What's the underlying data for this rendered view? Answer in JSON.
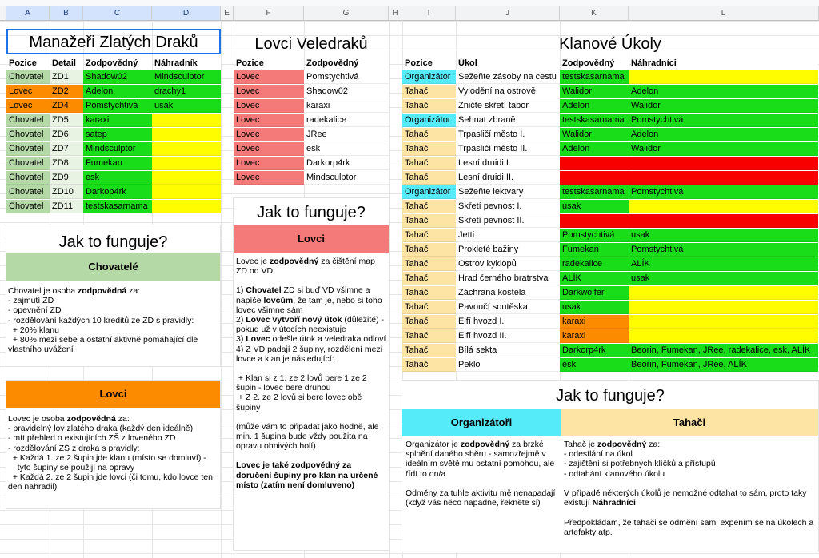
{
  "columns": [
    "A",
    "B",
    "C",
    "D",
    "E",
    "F",
    "G",
    "H",
    "I",
    "J",
    "K",
    "L"
  ],
  "colors": {
    "green": "#19dd19",
    "yellow": "#fffd00",
    "red": "#f80000",
    "orange": "#fd8b00",
    "sage": "#b5d8a7",
    "salmon": "#f47a7a",
    "cyan": "#56ebf9",
    "peach": "#fde4a5"
  },
  "dragons": {
    "title": "Manažeři Zlatých Draků",
    "headers": [
      "Pozice",
      "Detail",
      "Zodpovědný",
      "Náhradník"
    ],
    "rows": [
      [
        "Chovatel",
        "ZD1",
        "Shadow02",
        "Mindsculptor"
      ],
      [
        "Lovec",
        "ZD2",
        "Adelon",
        "drachy1"
      ],
      [
        "Lovec",
        "ZD4",
        "Pomstychtivá",
        "usak"
      ],
      [
        "Chovatel",
        "ZD5",
        "karaxi",
        ""
      ],
      [
        "Chovatel",
        "ZD6",
        "satep",
        ""
      ],
      [
        "Chovatel",
        "ZD7",
        "Mindsculptor",
        ""
      ],
      [
        "Chovatel",
        "ZD8",
        "Fumekan",
        ""
      ],
      [
        "Chovatel",
        "ZD9",
        "esk",
        ""
      ],
      [
        "Chovatel",
        "ZD10",
        "Darkop4rk",
        ""
      ],
      [
        "Chovatel",
        "ZD11",
        "testskasarnama",
        ""
      ]
    ]
  },
  "hunters": {
    "title": "Lovci Veledraků",
    "headers": [
      "Pozice",
      "Zodpovědný"
    ],
    "rows": [
      [
        "Lovec",
        "Pomstychtivá"
      ],
      [
        "Lovec",
        "Shadow02"
      ],
      [
        "Lovec",
        "karaxi"
      ],
      [
        "Lovec",
        "radekalice"
      ],
      [
        "Lovec",
        "JRee"
      ],
      [
        "Lovec",
        "esk"
      ],
      [
        "Lovec",
        "Darkorp4rk"
      ],
      [
        "Lovec",
        "Mindsculptor"
      ]
    ]
  },
  "tasks": {
    "title": "Klanové Úkoly",
    "headers": [
      "Pozice",
      "Úkol",
      "Zodpovědný",
      "Náhradníci"
    ],
    "rows": [
      [
        "Organizátor",
        "Sežeňte zásoby na cestu",
        "testskasarnama",
        ""
      ],
      [
        "Tahač",
        "Vylodění na ostrově",
        "Walidor",
        "Adelon"
      ],
      [
        "Tahač",
        "Zničte skřetí tábor",
        "Adelon",
        "Walidor"
      ],
      [
        "Organizátor",
        "Sehnat zbraně",
        "testskasarnama",
        "Pomstychtivá"
      ],
      [
        "Tahač",
        "Trpasličí město I.",
        "Walidor",
        "Adelon"
      ],
      [
        "Tahač",
        "Trpasličí město II.",
        "Adelon",
        "Walidor"
      ],
      [
        "Tahač",
        "Lesní druidi I.",
        "",
        ""
      ],
      [
        "Tahač",
        "Lesní druidi II.",
        "",
        ""
      ],
      [
        "Organizátor",
        "Sežeňte lektvary",
        "testskasarnama",
        "Pomstychtivá"
      ],
      [
        "Tahač",
        "Skřetí pevnost I.",
        "usak",
        ""
      ],
      [
        "Tahač",
        "Skřetí pevnost II.",
        "",
        ""
      ],
      [
        "Tahač",
        "Jetti",
        "Pomstychtivá",
        "usak"
      ],
      [
        "Tahač",
        "Prokleté bažiny",
        "Fumekan",
        "Pomstychtivá"
      ],
      [
        "Tahač",
        "Ostrov kyklopů",
        "radekalice",
        "ALÍK"
      ],
      [
        "Tahač",
        "Hrad černého bratrstva",
        "ALÍK",
        "usak"
      ],
      [
        "Tahač",
        "Záchrana kostela",
        "Darkwolfer",
        ""
      ],
      [
        "Tahač",
        "Pavoučí soutěska",
        "usak",
        ""
      ],
      [
        "Tahač",
        "Elfí hvozd I.",
        "karaxi",
        ""
      ],
      [
        "Tahač",
        "Elfí hvozd II.",
        "karaxi",
        ""
      ],
      [
        "Tahač",
        "Bílá sekta",
        "Darkorp4rk",
        "Beorin, Fumekan, JRee, radekalice, esk, ALÍK"
      ],
      [
        "Tahač",
        "Peklo",
        "esk",
        "Beorin, Fumekan, JRee, ALÍK"
      ]
    ]
  },
  "howto1": {
    "title": "Jak to funguje?",
    "breeders_label": "Chovatelé",
    "breeders_text": [
      "Chovatel je osoba ",
      "zodpovědná",
      " za:\n- zajmutí ZD\n- opevnění ZD\n- rozdělování každých 10 kreditů ze ZD s pravidly:\n  + 20% klanu\n  + 80% mezi sebe a ostatní aktivně pomáhající dle vlastního uvážení"
    ],
    "hunters_label": "Lovci",
    "hunters_text": [
      "Lovec je osoba ",
      "zodpovědná",
      " za:\n- pravidelný lov zlatého draka (každý den ideálně)\n- mít přehled o existujících ZŠ z loveného ZD\n- rozdělování ZŠ z draka s pravidly:\n  + Každá 1. ze 2 šupin jde klanu (místo se domluví) -\n    tyto šupiny se použijí na opravy\n  + Každá 2. ze 2 šupin jde lovci (či tomu, kdo lovce ten den nahradil)"
    ]
  },
  "howto2": {
    "title": "Jak to funguje?",
    "label": "Lovci",
    "p1": [
      "Lovec je ",
      "zodpovědný",
      " za čištění map ZD od VD."
    ],
    "p2": [
      "1) ",
      "Chovatel",
      " ZD si buď VD všimne a napíše ",
      "lovcům",
      ", že tam je, nebo si toho lovec všimne sám"
    ],
    "p3": [
      "2) ",
      "Lovec vytvoří nový útok",
      " (důležité) - pokud už v útocích neexistuje"
    ],
    "p4": [
      "3) ",
      "Lovec",
      " odešle útok a veledraka odloví"
    ],
    "p5": "4) Z VD padají 2 šupiny, rozdělení mezi lovce a klan je následující:",
    "p6": " + Klan si z 1. ze 2 lovů bere 1 ze 2 šupin - lovec bere druhou\n + Z 2. ze 2 lovů si bere lovec obě šupiny",
    "p7": "(může vám to připadat jako hodně, ale min. 1 šupina bude vždy použita na opravu ohnivých holí)",
    "p8": "Lovec je také zodpovědný za doručení šupiny pro klan na určené místo (zatím není domluveno)"
  },
  "howto3": {
    "title": "Jak to funguje?",
    "org_label": "Organizátoři",
    "org_text": [
      "Organizátor je ",
      "zodpovědný",
      " za brzké splnění daného sběru - samozřejmě v ideálním světě mu ostatní pomohou, ale řídí to on/a\n\nOdměny za tuhle aktivitu mě nenapadají (když vás něco napadne, řekněte si)"
    ],
    "tah_label": "Tahači",
    "tah_text": [
      "Tahač je ",
      "zodpovědný",
      " za:\n- odesílání na úkol\n- zajištění si potřebných klíčků a přístupů\n- odtahání klanového úkolu\n\nV případě některých úkolů je nemožné odtahat to sám, proto taky existují ",
      "Náhradníci",
      "\n\nPředpokládám, že tahači se odmění sami expením se na úkolech a artefakty atp."
    ]
  }
}
